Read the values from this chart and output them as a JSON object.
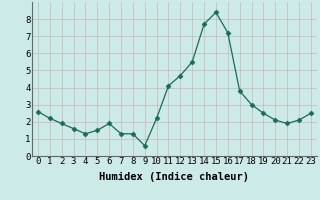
{
  "x": [
    0,
    1,
    2,
    3,
    4,
    5,
    6,
    7,
    8,
    9,
    10,
    11,
    12,
    13,
    14,
    15,
    16,
    17,
    18,
    19,
    20,
    21,
    22,
    23
  ],
  "y": [
    2.6,
    2.2,
    1.9,
    1.6,
    1.3,
    1.5,
    1.9,
    1.3,
    1.3,
    0.6,
    2.2,
    4.1,
    4.7,
    5.5,
    7.7,
    8.4,
    7.2,
    3.8,
    3.0,
    2.5,
    2.1,
    1.9,
    2.1,
    2.5
  ],
  "xlabel": "Humidex (Indice chaleur)",
  "ylim": [
    0,
    9
  ],
  "xlim": [
    -0.5,
    23.5
  ],
  "yticks": [
    0,
    1,
    2,
    3,
    4,
    5,
    6,
    7,
    8
  ],
  "xticks": [
    0,
    1,
    2,
    3,
    4,
    5,
    6,
    7,
    8,
    9,
    10,
    11,
    12,
    13,
    14,
    15,
    16,
    17,
    18,
    19,
    20,
    21,
    22,
    23
  ],
  "line_color": "#1a6b5a",
  "marker": "D",
  "marker_size": 2.5,
  "bg_color": "#cceae7",
  "grid_color_major": "#c8b8b8",
  "grid_color_minor": "#b8d8d5",
  "xlabel_fontsize": 7.5,
  "tick_fontsize": 6.5,
  "fig_width": 3.2,
  "fig_height": 2.0,
  "dpi": 100
}
